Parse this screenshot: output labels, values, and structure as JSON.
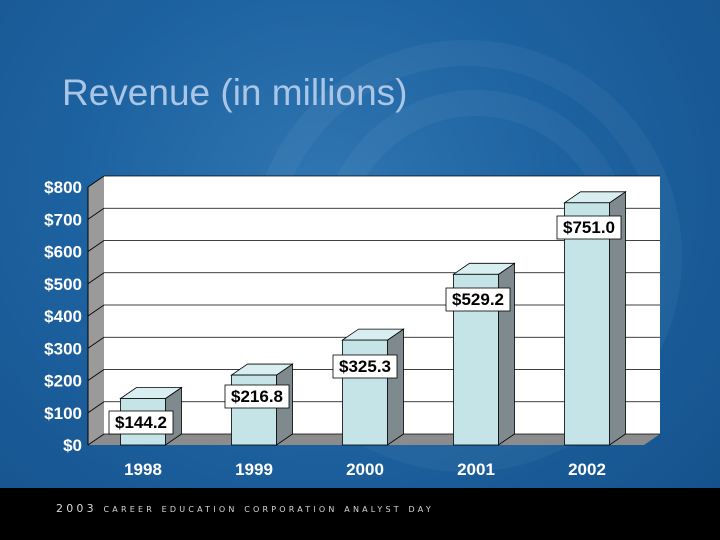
{
  "slide": {
    "title": "Revenue (in millions)",
    "footer": "2003 career education corporation analyst day"
  },
  "colors": {
    "background": "#1d62a0",
    "bar_front": "#c5e4e8",
    "bar_side": "#7f8a8e",
    "bar_top": "#d8eef0",
    "plot_back": "#ffffff"
  },
  "chart_data": {
    "type": "bar",
    "categories": [
      "1998",
      "1999",
      "2000",
      "2001",
      "2002"
    ],
    "values": [
      144.2,
      216.8,
      325.3,
      529.2,
      751.0
    ],
    "data_labels": [
      "$144.2",
      "$216.8",
      "$325.3",
      "$529.2",
      "$751.0"
    ],
    "title": "Revenue (in millions)",
    "xlabel": "",
    "ylabel": "",
    "ylim": [
      0,
      800
    ],
    "yticks": [
      0,
      100,
      200,
      300,
      400,
      500,
      600,
      700,
      800
    ],
    "ytick_labels": [
      "$0",
      "$100",
      "$200",
      "$300",
      "$400",
      "$500",
      "$600",
      "$700",
      "$800"
    ],
    "grid": true,
    "legend": "none",
    "style": "3d"
  }
}
